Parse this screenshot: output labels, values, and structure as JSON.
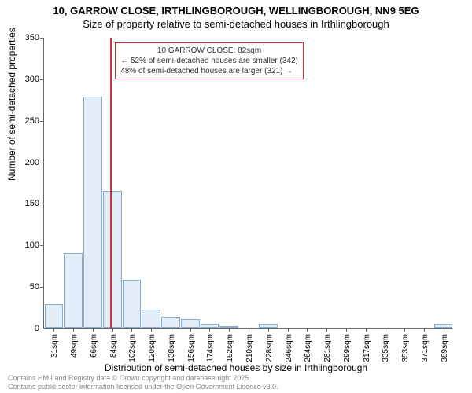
{
  "title_line1": "10, GARROW CLOSE, IRTHLINGBOROUGH, WELLINGBOROUGH, NN9 5EG",
  "title_line2": "Size of property relative to semi-detached houses in Irthlingborough",
  "y_axis_title": "Number of semi-detached properties",
  "x_axis_title": "Distribution of semi-detached houses by size in Irthlingborough",
  "footer_line1": "Contains HM Land Registry data © Crown copyright and database right 2025.",
  "footer_line2": "Contains public sector information licensed under the Open Government Licence v3.0.",
  "chart": {
    "type": "histogram",
    "ylim": [
      0,
      350
    ],
    "ytick_step": 50,
    "y_ticks": [
      0,
      50,
      100,
      150,
      200,
      250,
      300,
      350
    ],
    "x_categories": [
      "31sqm",
      "49sqm",
      "66sqm",
      "84sqm",
      "102sqm",
      "120sqm",
      "138sqm",
      "156sqm",
      "174sqm",
      "192sqm",
      "210sqm",
      "228sqm",
      "246sqm",
      "264sqm",
      "281sqm",
      "299sqm",
      "317sqm",
      "335sqm",
      "353sqm",
      "371sqm",
      "389sqm"
    ],
    "values": [
      28,
      90,
      278,
      165,
      58,
      22,
      13,
      10,
      5,
      2,
      0,
      5,
      0,
      0,
      0,
      0,
      0,
      0,
      0,
      0,
      5
    ],
    "bar_fill": "#e3edf8",
    "bar_stroke": "#84aed6",
    "background_color": "#ffffff",
    "axis_color": "#666666",
    "tick_font_size": 11
  },
  "marker": {
    "x_category_index": 2.9,
    "color": "#cc3333",
    "width": 2
  },
  "annotation": {
    "line1": "10 GARROW CLOSE: 82sqm",
    "line2": "← 52% of semi-detached houses are smaller (342)",
    "line3": "48% of semi-detached houses are larger (321) →",
    "border_color": "#cc3333",
    "text_color": "#333333",
    "font_size": 10
  }
}
